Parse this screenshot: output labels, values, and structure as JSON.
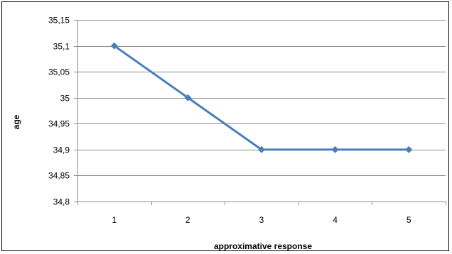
{
  "chart_data": {
    "type": "line",
    "title": "",
    "xlabel": "approximative response",
    "ylabel": "age",
    "categories": [
      "1",
      "2",
      "3",
      "4",
      "5"
    ],
    "series": [
      {
        "values": [
          35.1,
          35.0,
          34.9,
          34.9,
          34.9
        ]
      }
    ],
    "ylim": [
      34.8,
      35.15
    ],
    "yticks": [
      "35,15",
      "35,1",
      "35,05",
      "35",
      "34,95",
      "34,9",
      "34,85",
      "34,8"
    ],
    "ytick_values": [
      35.15,
      35.1,
      35.05,
      35.0,
      34.95,
      34.9,
      34.85,
      34.8
    ],
    "grid": true,
    "legend": "none",
    "colors": {
      "line": "#4a7ebb",
      "marker": "#4a7ebb",
      "gridline": "#8c8c8c",
      "axis": "#8c8c8c"
    }
  }
}
